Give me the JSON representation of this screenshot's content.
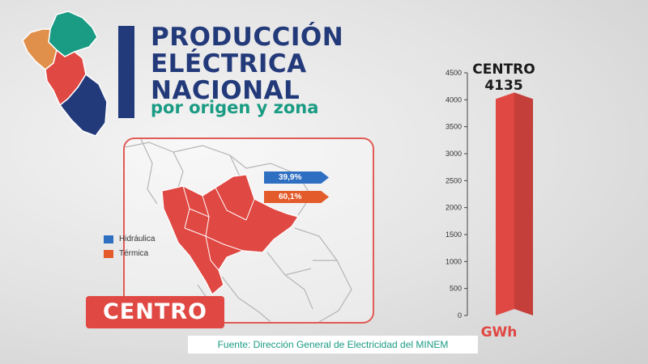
{
  "header": {
    "title_line1": "PRODUCCIÓN",
    "title_line2": "ELÉCTRICA",
    "title_line3": "NACIONAL",
    "subtitle": "por origen y zona"
  },
  "region": {
    "name": "CENTRO",
    "hydro_pct": "39,9%",
    "thermo_pct": "60,1%"
  },
  "legend": {
    "hydro": "Hidráulica",
    "thermo": "Térmica"
  },
  "source": "Fuente: Dirección General de Electricidad del MINEM",
  "colors": {
    "navy": "#233a7a",
    "teal": "#1a9b83",
    "red": "#e04843",
    "orange": "#e35a2b",
    "blue": "#2e6fc2",
    "sand": "#e0904a"
  },
  "chart_data": {
    "type": "bar",
    "categories": [
      "CENTRO"
    ],
    "values": [
      4135
    ],
    "value_label": "4135",
    "xlabel": "GWh",
    "ylabel": "",
    "ylim": [
      0,
      4500
    ],
    "yticks": [
      0,
      500,
      1000,
      1500,
      2000,
      2500,
      3000,
      3500,
      4000,
      4500
    ],
    "grid": false,
    "bar_color": "#e04843"
  }
}
